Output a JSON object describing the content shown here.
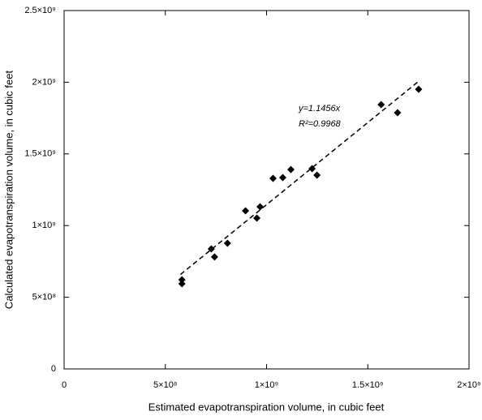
{
  "chart_data": {
    "type": "scatter",
    "x_label": "Estimated evapotranspiration volume, in cubic feet",
    "y_label": "Calculated evapotranspiration volume, in cubic feet",
    "xlim": [
      0,
      2000000000
    ],
    "ylim": [
      0,
      2500000000
    ],
    "xticks": [
      0,
      {
        "value": 500000000,
        "label": "5×10⁸"
      },
      {
        "value": 1000000000,
        "label": "1×10⁹"
      },
      {
        "value": 1500000000,
        "label": "1.5×10⁹"
      },
      {
        "value": 2000000000,
        "label": "2×10⁹"
      }
    ],
    "yticks": [
      0,
      {
        "value": 500000000,
        "label": "5×10⁸"
      },
      {
        "value": 1000000000,
        "label": "1×10⁹"
      },
      {
        "value": 1500000000,
        "label": "1.5×10⁹"
      },
      {
        "value": 2000000000,
        "label": "2×10⁹"
      },
      {
        "value": 2500000000,
        "label": "2.5×10⁹"
      }
    ],
    "color": "#000000",
    "x": [
      582000000,
      582000000,
      727000000,
      743000000,
      807000000,
      896000000,
      952000000,
      968000000,
      1032000000,
      1080000000,
      1120000000,
      1225000000,
      1249000000,
      1566000000,
      1647000000,
      1751000000
    ],
    "values": [
      622000000,
      594000000,
      837000000,
      781000000,
      877000000,
      1103000000,
      1052000000,
      1131000000,
      1329000000,
      1335000000,
      1391000000,
      1397000000,
      1352000000,
      1844000000,
      1787000000,
      1951000000
    ],
    "trendline": {
      "x": [
        575000000,
        1750000000
      ],
      "y": [
        659000000,
        2005000000
      ]
    },
    "annotations": [
      "y=1.1456x",
      "R²=0.9968"
    ]
  }
}
